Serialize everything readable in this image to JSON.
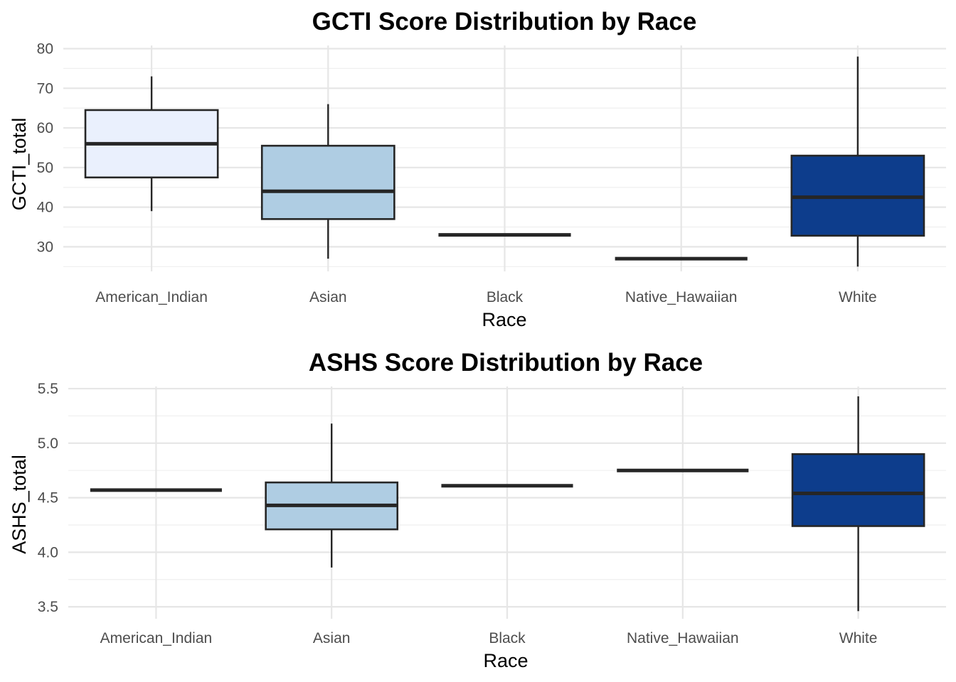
{
  "chart_data": [
    {
      "type": "boxplot",
      "title": "GCTI Score Distribution by Race",
      "xlabel": "Race",
      "ylabel": "GCTI_total",
      "ylim": [
        23.8,
        80.8
      ],
      "y_ticks": [
        30,
        40,
        50,
        60,
        70,
        80
      ],
      "categories": [
        "American_Indian",
        "Asian",
        "Black",
        "Native_Hawaiian",
        "White"
      ],
      "boxes": [
        {
          "category": "American_Indian",
          "min": 39,
          "q1": 47.5,
          "median": 56,
          "q3": 64.5,
          "max": 73,
          "fill": "#eaf0fd"
        },
        {
          "category": "Asian",
          "min": 27,
          "q1": 37,
          "median": 44,
          "q3": 55.5,
          "max": 66,
          "fill": "#afcde3"
        },
        {
          "category": "Black",
          "min": 33,
          "q1": 33,
          "median": 33,
          "q3": 33,
          "max": 33,
          "fill": "#4e96c7"
        },
        {
          "category": "Native_Hawaiian",
          "min": 27,
          "q1": 27,
          "median": 27,
          "q3": 27,
          "max": 27,
          "fill": "#2b6eb0"
        },
        {
          "category": "White",
          "min": 25,
          "q1": 32.8,
          "median": 42.5,
          "q3": 53,
          "max": 78,
          "fill": "#0d3d8c"
        }
      ],
      "grid": true,
      "legend": "none"
    },
    {
      "type": "boxplot",
      "title": "ASHS Score Distribution by Race",
      "xlabel": "Race",
      "ylabel": "ASHS_total",
      "ylim": [
        3.39,
        5.52
      ],
      "y_ticks": [
        "3.5",
        "4.0",
        "4.5",
        "5.0",
        "5.5"
      ],
      "categories": [
        "American_Indian",
        "Asian",
        "Black",
        "Native_Hawaiian",
        "White"
      ],
      "boxes": [
        {
          "category": "American_Indian",
          "min": 4.57,
          "q1": 4.57,
          "median": 4.57,
          "q3": 4.57,
          "max": 4.57,
          "fill": "#eaf0fd"
        },
        {
          "category": "Asian",
          "min": 3.86,
          "q1": 4.21,
          "median": 4.43,
          "q3": 4.64,
          "max": 5.18,
          "fill": "#afcde3"
        },
        {
          "category": "Black",
          "min": 4.61,
          "q1": 4.61,
          "median": 4.61,
          "q3": 4.61,
          "max": 4.61,
          "fill": "#4e96c7"
        },
        {
          "category": "Native_Hawaiian",
          "min": 4.75,
          "q1": 4.75,
          "median": 4.75,
          "q3": 4.75,
          "max": 4.75,
          "fill": "#2b6eb0"
        },
        {
          "category": "White",
          "min": 3.46,
          "q1": 4.24,
          "median": 4.54,
          "q3": 4.9,
          "max": 5.43,
          "fill": "#0d3d8c"
        }
      ],
      "grid": true,
      "legend": "none"
    }
  ]
}
